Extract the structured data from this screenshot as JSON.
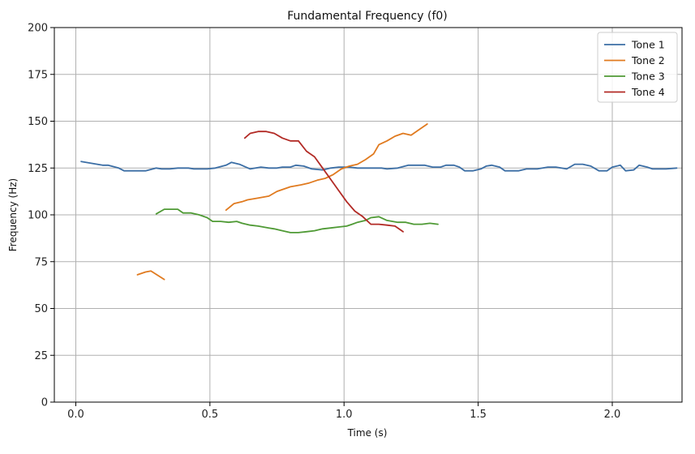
{
  "chart_data": {
    "type": "line",
    "title": "Fundamental Frequency (f0)",
    "xlabel": "Time (s)",
    "ylabel": "Frequency (Hz)",
    "xlim": [
      -0.08,
      2.26
    ],
    "ylim": [
      0,
      200
    ],
    "xticks": [
      0.0,
      0.5,
      1.0,
      1.5,
      2.0
    ],
    "xtick_labels": [
      "0.0",
      "0.5",
      "1.0",
      "1.5",
      "2.0"
    ],
    "yticks": [
      0,
      25,
      50,
      75,
      100,
      125,
      150,
      175,
      200
    ],
    "ytick_labels": [
      "0",
      "25",
      "50",
      "75",
      "100",
      "125",
      "150",
      "175",
      "200"
    ],
    "grid": true,
    "legend_position": "top-right",
    "series": [
      {
        "name": "Tone 1",
        "color": "#3b6ea5",
        "segments": [
          [
            [
              0.02,
              128.5
            ],
            [
              0.06,
              127.5
            ],
            [
              0.1,
              126.5
            ],
            [
              0.12,
              126.5
            ],
            [
              0.16,
              125
            ],
            [
              0.18,
              123.5
            ],
            [
              0.22,
              123.5
            ],
            [
              0.26,
              123.5
            ],
            [
              0.3,
              125
            ],
            [
              0.32,
              124.5
            ],
            [
              0.35,
              124.5
            ],
            [
              0.38,
              125
            ],
            [
              0.42,
              125
            ],
            [
              0.44,
              124.5
            ],
            [
              0.49,
              124.5
            ],
            [
              0.52,
              125
            ],
            [
              0.56,
              126.5
            ],
            [
              0.58,
              128
            ],
            [
              0.61,
              127
            ],
            [
              0.65,
              124.5
            ],
            [
              0.69,
              125.5
            ],
            [
              0.72,
              125
            ],
            [
              0.75,
              125
            ],
            [
              0.77,
              125.5
            ],
            [
              0.8,
              125.5
            ],
            [
              0.82,
              126.5
            ],
            [
              0.85,
              126
            ],
            [
              0.88,
              124.5
            ],
            [
              0.92,
              124
            ],
            [
              0.95,
              125
            ],
            [
              0.98,
              125.5
            ],
            [
              1.02,
              125.5
            ],
            [
              1.05,
              125
            ],
            [
              1.1,
              125
            ],
            [
              1.14,
              125
            ],
            [
              1.16,
              124.5
            ],
            [
              1.2,
              125
            ],
            [
              1.24,
              126.5
            ],
            [
              1.28,
              126.5
            ],
            [
              1.3,
              126.5
            ],
            [
              1.33,
              125.5
            ],
            [
              1.36,
              125.5
            ],
            [
              1.38,
              126.5
            ],
            [
              1.41,
              126.5
            ],
            [
              1.43,
              125.5
            ],
            [
              1.45,
              123.5
            ],
            [
              1.48,
              123.5
            ],
            [
              1.51,
              124.5
            ],
            [
              1.53,
              126
            ],
            [
              1.55,
              126.5
            ],
            [
              1.58,
              125.5
            ],
            [
              1.6,
              123.5
            ],
            [
              1.65,
              123.5
            ],
            [
              1.68,
              124.5
            ],
            [
              1.72,
              124.5
            ],
            [
              1.76,
              125.5
            ],
            [
              1.79,
              125.5
            ],
            [
              1.83,
              124.5
            ],
            [
              1.86,
              127
            ],
            [
              1.89,
              127
            ],
            [
              1.92,
              126
            ],
            [
              1.95,
              123.5
            ],
            [
              1.98,
              123.5
            ],
            [
              2.0,
              125.5
            ],
            [
              2.03,
              126.5
            ],
            [
              2.05,
              123.5
            ],
            [
              2.08,
              124
            ],
            [
              2.1,
              126.5
            ],
            [
              2.13,
              125.5
            ],
            [
              2.15,
              124.5
            ],
            [
              2.2,
              124.5
            ],
            [
              2.24,
              125
            ]
          ]
        ]
      },
      {
        "name": "Tone 2",
        "color": "#e07a1f",
        "segments": [
          [
            [
              0.23,
              68
            ],
            [
              0.26,
              69.5
            ],
            [
              0.28,
              70
            ],
            [
              0.33,
              65.5
            ]
          ],
          [
            [
              0.56,
              102.5
            ],
            [
              0.59,
              106
            ],
            [
              0.62,
              107
            ],
            [
              0.64,
              108
            ],
            [
              0.68,
              109
            ],
            [
              0.72,
              110
            ],
            [
              0.75,
              112.5
            ],
            [
              0.8,
              115
            ],
            [
              0.84,
              116
            ],
            [
              0.87,
              117
            ],
            [
              0.9,
              118.5
            ],
            [
              0.93,
              119.5
            ],
            [
              0.96,
              121.5
            ],
            [
              0.99,
              124.5
            ],
            [
              1.02,
              126
            ],
            [
              1.05,
              127
            ],
            [
              1.08,
              129.5
            ],
            [
              1.11,
              132.5
            ],
            [
              1.13,
              137.5
            ],
            [
              1.16,
              139.5
            ],
            [
              1.19,
              142
            ],
            [
              1.22,
              143.5
            ],
            [
              1.25,
              142.5
            ],
            [
              1.28,
              145.5
            ],
            [
              1.31,
              148.5
            ]
          ]
        ]
      },
      {
        "name": "Tone 3",
        "color": "#4f9a35",
        "segments": [
          [
            [
              0.3,
              100.5
            ],
            [
              0.33,
              103
            ],
            [
              0.38,
              103
            ],
            [
              0.4,
              101
            ],
            [
              0.43,
              101
            ],
            [
              0.46,
              100
            ],
            [
              0.49,
              98.5
            ],
            [
              0.51,
              96.5
            ],
            [
              0.54,
              96.5
            ],
            [
              0.57,
              96
            ],
            [
              0.6,
              96.5
            ],
            [
              0.62,
              95.5
            ],
            [
              0.65,
              94.5
            ],
            [
              0.68,
              94
            ],
            [
              0.72,
              93
            ],
            [
              0.74,
              92.5
            ],
            [
              0.77,
              91.5
            ],
            [
              0.8,
              90.5
            ],
            [
              0.83,
              90.5
            ],
            [
              0.86,
              91
            ],
            [
              0.89,
              91.5
            ],
            [
              0.92,
              92.5
            ],
            [
              0.95,
              93
            ],
            [
              0.98,
              93.5
            ],
            [
              1.01,
              94
            ],
            [
              1.03,
              95
            ],
            [
              1.05,
              96
            ],
            [
              1.08,
              97
            ],
            [
              1.1,
              98.5
            ],
            [
              1.13,
              99
            ],
            [
              1.16,
              97
            ],
            [
              1.2,
              96
            ],
            [
              1.23,
              96
            ],
            [
              1.26,
              95
            ],
            [
              1.29,
              95
            ],
            [
              1.32,
              95.5
            ],
            [
              1.35,
              95
            ]
          ]
        ]
      },
      {
        "name": "Tone 4",
        "color": "#b22a25",
        "segments": [
          [
            [
              0.63,
              141
            ],
            [
              0.65,
              143.5
            ],
            [
              0.68,
              144.5
            ],
            [
              0.71,
              144.5
            ],
            [
              0.74,
              143.5
            ],
            [
              0.77,
              141
            ],
            [
              0.8,
              139.5
            ],
            [
              0.83,
              139.5
            ],
            [
              0.86,
              134
            ],
            [
              0.89,
              131
            ],
            [
              0.92,
              125
            ],
            [
              0.95,
              119
            ],
            [
              0.98,
              113
            ],
            [
              1.01,
              107
            ],
            [
              1.04,
              102
            ],
            [
              1.07,
              99
            ],
            [
              1.1,
              95
            ],
            [
              1.13,
              95
            ],
            [
              1.16,
              94.5
            ],
            [
              1.19,
              94
            ],
            [
              1.22,
              91
            ]
          ]
        ]
      }
    ]
  }
}
